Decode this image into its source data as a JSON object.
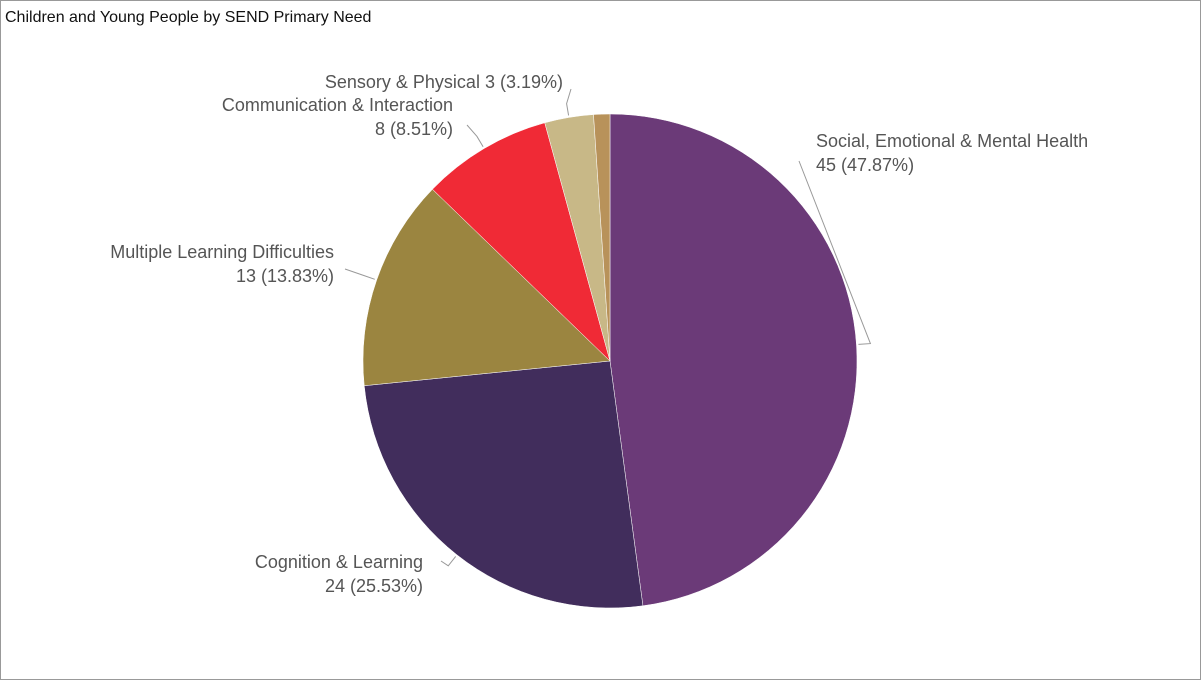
{
  "chart_data": {
    "type": "pie",
    "title": "Children and Young People by SEND Primary Need",
    "categories": [
      "Social, Emotional & Mental Health",
      "Cognition & Learning",
      "Multiple Learning Difficulties",
      "Communication & Interaction",
      "Sensory & Physical",
      null
    ],
    "values": [
      45,
      24,
      13,
      8,
      3,
      1
    ],
    "value_labels": [
      "45 (47.87%)",
      "24 (25.53%)",
      "13 (13.83%)",
      "8 (8.51%)",
      "3 (3.19%)",
      null
    ],
    "colors": [
      "#6b3a78",
      "#412d5c",
      "#9b8540",
      "#f02a36",
      "#c8b887",
      "#b8925a"
    ]
  }
}
